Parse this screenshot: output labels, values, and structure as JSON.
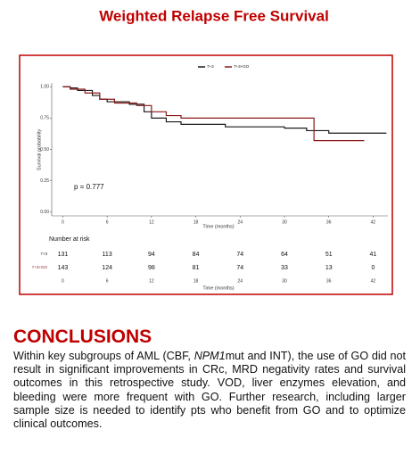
{
  "chart_data": {
    "type": "step",
    "title": "Weighted Relapse Free Survival",
    "xlabel": "Time (months)",
    "ylabel": "Survival probability",
    "annotation": "p = 0.777",
    "xlim": [
      -1.5,
      44
    ],
    "xticks": [
      0,
      6,
      12,
      18,
      24,
      30,
      36,
      42
    ],
    "ylim": [
      -0.03,
      1.03
    ],
    "yticks": [
      {
        "value": 0,
        "label": "0.00"
      },
      {
        "value": 0.25,
        "label": "0.25"
      },
      {
        "value": 0.5,
        "label": "0.50"
      },
      {
        "value": 0.75,
        "label": "0.75"
      },
      {
        "value": 1,
        "label": "1.00"
      }
    ],
    "series": [
      {
        "name": "7+3",
        "color": "#1a1a1a",
        "x": [
          0,
          1,
          2,
          4,
          5,
          6,
          9,
          11,
          12,
          14,
          16,
          22,
          30,
          33,
          36,
          43.8
        ],
        "values": [
          1,
          0.99,
          0.97,
          0.93,
          0.9,
          0.88,
          0.86,
          0.8,
          0.75,
          0.72,
          0.7,
          0.68,
          0.67,
          0.65,
          0.63,
          0.63
        ]
      },
      {
        "name": "7+3+GO",
        "color": "#8b1a1a",
        "x": [
          0,
          1,
          3,
          5,
          7,
          10,
          12,
          14,
          16,
          34,
          40.8
        ],
        "values": [
          1,
          0.98,
          0.95,
          0.9,
          0.87,
          0.85,
          0.8,
          0.77,
          0.75,
          0.57,
          0.57
        ]
      }
    ],
    "risk_table": {
      "title": "Number at risk",
      "rows": [
        {
          "name": "7+3",
          "values": [
            131,
            113,
            94,
            84,
            74,
            64,
            51,
            41
          ]
        },
        {
          "name": "7+3+GO",
          "values": [
            143,
            124,
            98,
            81,
            74,
            33,
            13,
            0
          ]
        }
      ]
    }
  },
  "conclusions": {
    "heading": "CONCLUSIONS",
    "text": [
      "Within key subgroups of AML (CBF, ",
      "NPM1",
      "mut and INT), the use of GO did not result in significant improvements in CRc, MRD negativity rates and survival outcomes in this retrospective study. VOD, liver enzymes elevation, and bleeding were more frequent with GO. Further research, including larger sample size is needed to identify pts who benefit from GO and to optimize clinical outcomes."
    ]
  }
}
